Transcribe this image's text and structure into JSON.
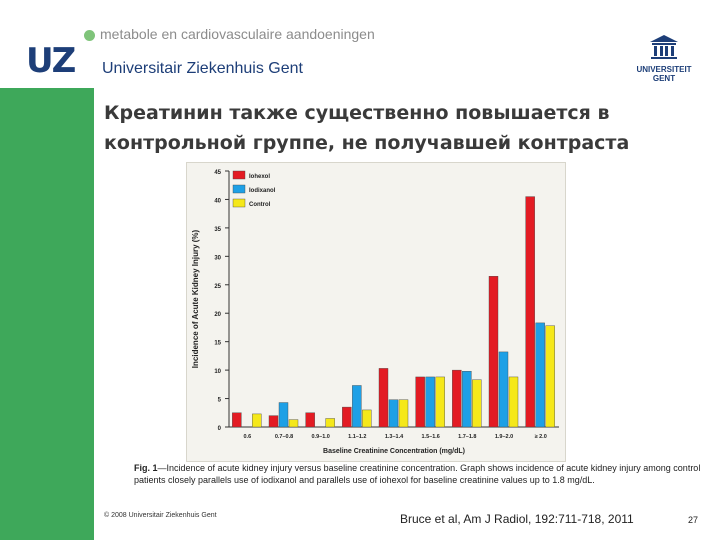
{
  "header": {
    "tagline": "metabole en cardiovasculaire aandoeningen",
    "logo_text": "UZ",
    "university_name": "Universitair Ziekenhuis Gent",
    "ugent_line1": "UNIVERSITEIT",
    "ugent_line2": "GENT"
  },
  "slide": {
    "title_line1": "Креатинин также существенно повышается в",
    "title_line2": "контрольной группе, не получавшей контраста",
    "caption_label": "Fig. 1",
    "caption_text": "—Incidence of acute kidney injury versus baseline creatinine concentration. Graph shows incidence of acute kidney injury among control patients closely parallels use of iodixanol and parallels use of iohexol for baseline creatinine values up to 1.8 mg/dL.",
    "copyright": "© 2008 Universitair Ziekenhuis Gent",
    "citation": "Bruce et al, Am J Radiol, 192:711-718, 2011",
    "page_number": "27"
  },
  "colors": {
    "iohexol": "#e31b23",
    "iodixanol": "#1ea0e6",
    "control": "#f5e81a",
    "brand_blue": "#1d3e78",
    "brand_green": "#3ea85a"
  },
  "chart_data": {
    "type": "bar",
    "title": "",
    "xlabel": "Baseline Creatinine Concentration (mg/dL)",
    "ylabel": "Incidence of Acute Kidney Injury (%)",
    "ylim": [
      0,
      45
    ],
    "yticks": [
      0,
      5,
      10,
      15,
      20,
      25,
      30,
      35,
      40,
      45
    ],
    "categories": [
      "0.6",
      "0.7–0.8",
      "0.9–1.0",
      "1.1–1.2",
      "1.3–1.4",
      "1.5–1.6",
      "1.7–1.8",
      "1.9–2.0",
      "≥ 2.0"
    ],
    "legend_position": "top-left",
    "series": [
      {
        "name": "Iohexol",
        "values": [
          2.5,
          2.0,
          2.5,
          3.5,
          10.3,
          8.8,
          10.0,
          26.5,
          40.5
        ]
      },
      {
        "name": "Iodixanol",
        "values": [
          0,
          4.3,
          0,
          7.3,
          4.8,
          8.8,
          9.8,
          13.2,
          18.3
        ]
      },
      {
        "name": "Control",
        "values": [
          2.3,
          1.3,
          1.5,
          3.0,
          4.8,
          8.8,
          8.3,
          8.8,
          17.8
        ]
      }
    ]
  }
}
